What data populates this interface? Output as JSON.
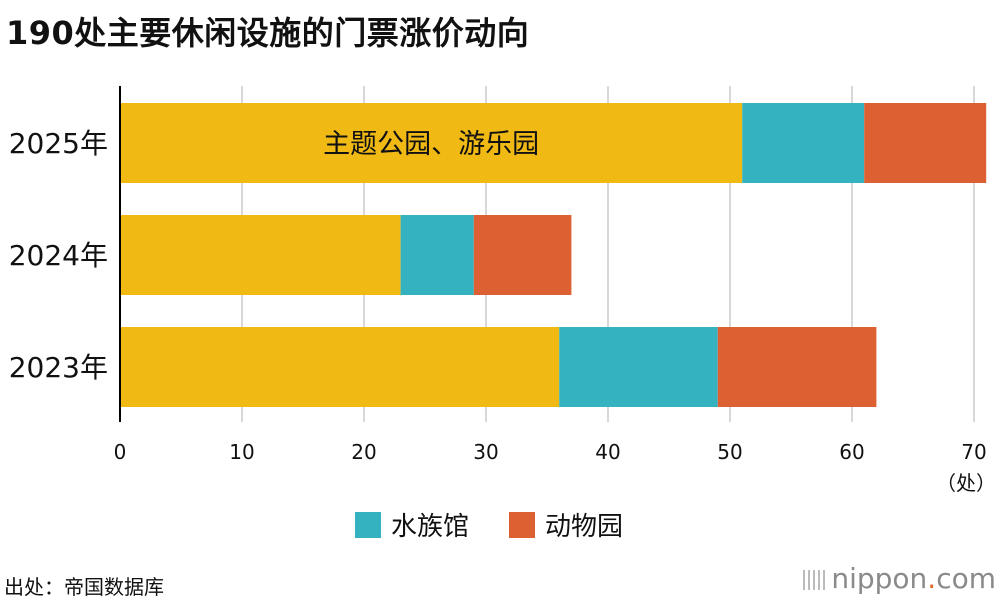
{
  "title": "190处主要休闲设施的门票涨价动向",
  "source": "出处：帝国数据库",
  "brand": {
    "name": "nippon",
    "dot": ".",
    "tld": "com"
  },
  "colors": {
    "theme_park": "#f0b914",
    "aquarium": "#35b2c0",
    "zoo": "#dc6032",
    "grid": "#cccccc",
    "axis": "#000000"
  },
  "chart_data": {
    "type": "bar",
    "orientation": "horizontal",
    "stacked": true,
    "categories": [
      "2025年",
      "2024年",
      "2023年"
    ],
    "series": [
      {
        "name": "主题公园、游乐园",
        "values": [
          51,
          23,
          36
        ]
      },
      {
        "name": "水族馆",
        "values": [
          10,
          6,
          13
        ]
      },
      {
        "name": "动物园",
        "values": [
          10,
          8,
          13
        ]
      }
    ],
    "xlim": [
      0,
      70
    ],
    "xticks": [
      0,
      10,
      20,
      30,
      40,
      50,
      60,
      70
    ],
    "xunit": "（处）",
    "grid": true,
    "legend_position": "bottom"
  }
}
